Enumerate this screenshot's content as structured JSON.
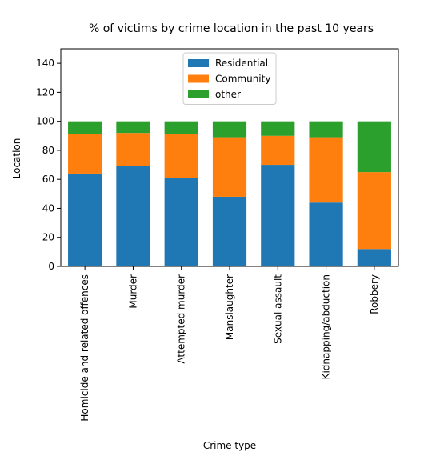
{
  "chart_data": {
    "type": "bar",
    "stacked": true,
    "title": "% of victims by crime location in the past 10 years",
    "xlabel": "Crime type",
    "ylabel": "Location",
    "ylim": [
      0,
      150
    ],
    "yticks": [
      0,
      20,
      40,
      60,
      80,
      100,
      120,
      140
    ],
    "grid": false,
    "legend_position": "top-center",
    "categories": [
      "Homicide and related offences",
      "Murder",
      "Attempted murder",
      "Manslaughter",
      "Sexual assault",
      "Kidnapping/abduction",
      "Robbery"
    ],
    "series": [
      {
        "name": "Residential",
        "color": "#1f77b4",
        "values": [
          64,
          69,
          61,
          48,
          70,
          44,
          12
        ]
      },
      {
        "name": "Community",
        "color": "#ff7f0e",
        "values": [
          27,
          23,
          30,
          41,
          20,
          45,
          53
        ]
      },
      {
        "name": "other",
        "color": "#2ca02c",
        "values": [
          9,
          8,
          9,
          11,
          10,
          11,
          35
        ]
      }
    ]
  }
}
